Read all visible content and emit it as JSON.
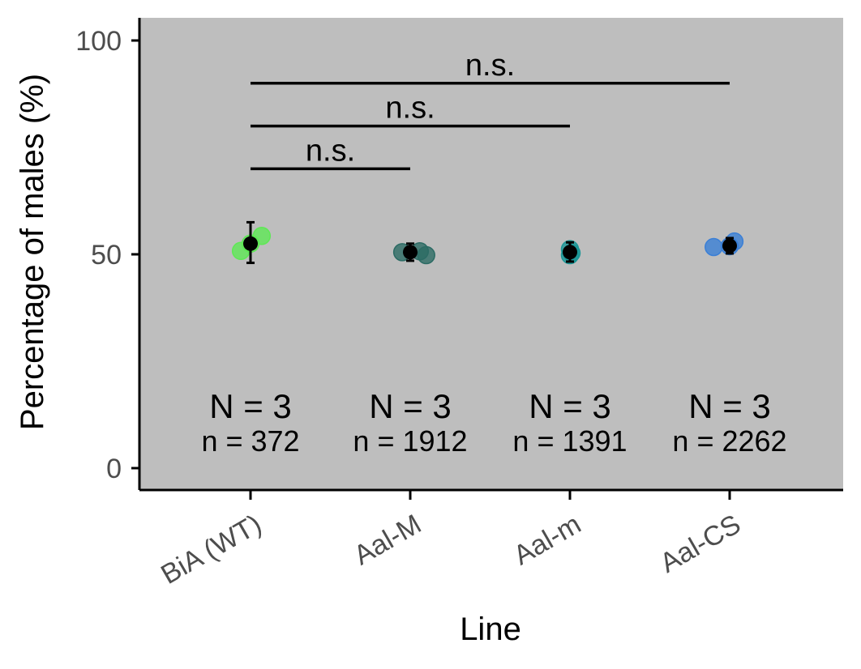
{
  "chart_data": {
    "type": "scatter",
    "title": "",
    "xlabel": "Line",
    "ylabel": "Percentage of males (%)",
    "ylim": [
      -5,
      110
    ],
    "yticks": [
      0,
      50,
      100
    ],
    "grid": false,
    "panel_background": "#bebebe",
    "categories": [
      "BiA (WT)",
      "Aal-M",
      "Aal-m",
      "Aal-CS"
    ],
    "groups": [
      {
        "category": "BiA (WT)",
        "color": "#5ee855",
        "points": [
          {
            "offset": -0.06,
            "y": 50.8
          },
          {
            "offset": 0.07,
            "y": 54.3
          },
          {
            "offset": 0.0,
            "y": 52.5
          }
        ],
        "mean": 52.5,
        "err_low": 48.0,
        "err_high": 57.5,
        "N_label": "N = 3",
        "n_label": "n = 372"
      },
      {
        "category": "Aal-M",
        "color": "#2c6b64",
        "points": [
          {
            "offset": -0.05,
            "y": 50.5
          },
          {
            "offset": 0.06,
            "y": 50.7
          },
          {
            "offset": 0.1,
            "y": 49.8
          }
        ],
        "mean": 50.5,
        "err_low": 48.5,
        "err_high": 52.5,
        "N_label": "N = 3",
        "n_label": "n = 1912"
      },
      {
        "category": "Aal-m",
        "color": "#1a9696",
        "points": [
          {
            "offset": 0.0,
            "y": 51.2
          },
          {
            "offset": 0.0,
            "y": 49.8
          },
          {
            "offset": 0.01,
            "y": 50.3
          }
        ],
        "mean": 50.5,
        "err_low": 48.3,
        "err_high": 52.8,
        "N_label": "N = 3",
        "n_label": "n = 1391"
      },
      {
        "category": "Aal-CS",
        "color": "#3a7fd6",
        "points": [
          {
            "offset": -0.1,
            "y": 51.7
          },
          {
            "offset": 0.03,
            "y": 53.0
          },
          {
            "offset": 0.0,
            "y": 51.9
          }
        ],
        "mean": 52.0,
        "err_low": 50.2,
        "err_high": 53.8,
        "N_label": "N = 3",
        "n_label": "n = 2262"
      }
    ],
    "comparisons": [
      {
        "from": "BiA (WT)",
        "to": "Aal-M",
        "y": 70,
        "label": "n.s."
      },
      {
        "from": "BiA (WT)",
        "to": "Aal-m",
        "y": 80,
        "label": "n.s."
      },
      {
        "from": "BiA (WT)",
        "to": "Aal-CS",
        "y": 90,
        "label": "n.s."
      }
    ]
  }
}
